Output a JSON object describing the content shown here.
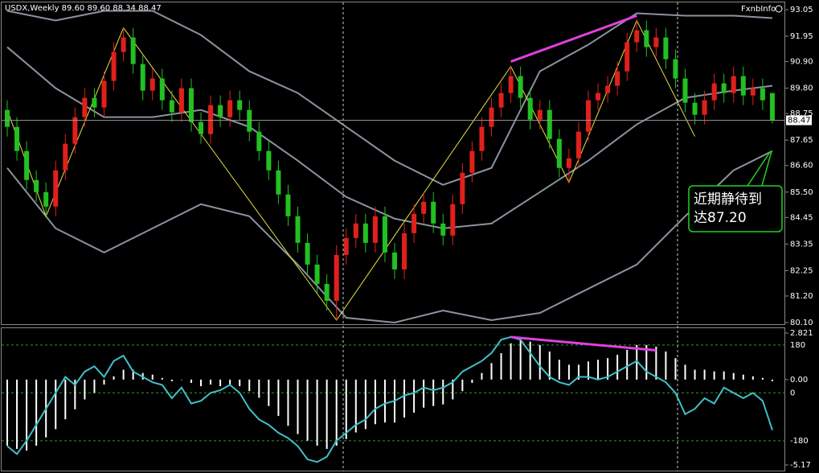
{
  "chart_data": {
    "type": "candlestick",
    "title": "USDX,Weekly  89.60 89.60 88.34 88.47",
    "brand": "FxnbInfo",
    "open": [
      88.9,
      88.2,
      87.2,
      86.0,
      85.5,
      84.9,
      86.4,
      87.5,
      88.6,
      89.4,
      89.0,
      90.1,
      91.3,
      91.9,
      90.8,
      89.7,
      90.2,
      89.3,
      88.8,
      89.8,
      88.4,
      87.9,
      89.1,
      88.6,
      89.3,
      88.9,
      88.0,
      87.2,
      86.4,
      85.4,
      84.5,
      83.4,
      82.5,
      81.7,
      81.0,
      82.9,
      83.6,
      84.2,
      83.4,
      84.5,
      83.0,
      82.3,
      83.8,
      84.6,
      85.1,
      84.2,
      83.7,
      85.0,
      86.3,
      87.2,
      88.2,
      89.0,
      89.6,
      90.3,
      89.4,
      88.5,
      88.9,
      87.7,
      86.5,
      86.9,
      88.0,
      89.3,
      89.6,
      89.9,
      90.5,
      91.7,
      92.2,
      91.5,
      91.9,
      91.0,
      90.2,
      89.2,
      88.7,
      89.3,
      90.0,
      89.6,
      90.3,
      89.5,
      89.8,
      89.6
    ],
    "high": [
      89.3,
      88.6,
      87.6,
      86.4,
      85.9,
      86.8,
      87.9,
      89.0,
      89.8,
      89.8,
      90.5,
      91.7,
      92.3,
      92.3,
      91.2,
      90.6,
      90.6,
      89.7,
      90.2,
      90.2,
      88.8,
      89.5,
      89.5,
      89.7,
      89.7,
      89.3,
      88.4,
      87.6,
      86.8,
      85.8,
      84.9,
      83.8,
      82.9,
      82.1,
      83.3,
      84.0,
      84.6,
      84.6,
      84.9,
      84.9,
      83.4,
      84.2,
      85.0,
      85.5,
      85.5,
      84.6,
      85.4,
      86.7,
      87.6,
      88.6,
      89.4,
      90.0,
      90.7,
      90.7,
      89.8,
      89.3,
      89.3,
      88.1,
      87.3,
      88.4,
      89.7,
      90.0,
      90.3,
      90.9,
      92.1,
      92.6,
      92.6,
      92.3,
      92.3,
      91.4,
      90.6,
      89.6,
      89.7,
      90.4,
      90.4,
      90.7,
      90.7,
      90.2,
      90.2,
      89.6
    ],
    "low": [
      87.8,
      86.8,
      85.6,
      85.1,
      84.5,
      84.5,
      86.0,
      87.1,
      88.2,
      88.6,
      88.6,
      89.7,
      90.9,
      90.4,
      89.3,
      89.3,
      88.9,
      88.4,
      88.4,
      88.0,
      87.5,
      87.5,
      88.2,
      88.2,
      88.5,
      87.6,
      86.8,
      86.0,
      85.0,
      84.1,
      83.0,
      82.1,
      81.3,
      80.6,
      80.2,
      82.5,
      83.2,
      83.0,
      83.0,
      82.6,
      81.9,
      81.9,
      83.4,
      84.2,
      83.8,
      83.3,
      83.3,
      84.6,
      85.9,
      86.8,
      87.8,
      88.6,
      89.2,
      89.0,
      88.1,
      88.1,
      87.3,
      86.1,
      85.9,
      86.5,
      87.6,
      88.9,
      89.2,
      89.5,
      90.1,
      91.3,
      91.1,
      91.1,
      90.6,
      89.8,
      88.8,
      88.3,
      88.3,
      88.9,
      89.2,
      89.2,
      89.1,
      89.1,
      88.9,
      88.34
    ],
    "close": [
      88.2,
      87.2,
      86.0,
      85.5,
      84.9,
      86.4,
      87.5,
      88.6,
      89.4,
      89.0,
      90.1,
      91.3,
      91.9,
      90.8,
      89.7,
      90.2,
      89.3,
      88.8,
      89.8,
      88.4,
      87.9,
      89.1,
      88.6,
      89.3,
      88.9,
      88.0,
      87.2,
      86.4,
      85.4,
      84.5,
      83.4,
      82.5,
      81.7,
      81.0,
      82.9,
      83.6,
      84.2,
      83.4,
      84.5,
      83.0,
      82.3,
      83.8,
      84.6,
      85.1,
      84.2,
      83.7,
      85.0,
      86.3,
      87.2,
      88.2,
      89.0,
      89.6,
      90.3,
      89.4,
      88.5,
      88.9,
      87.7,
      86.5,
      86.9,
      88.0,
      89.3,
      89.6,
      89.9,
      90.5,
      91.7,
      92.2,
      91.5,
      91.9,
      91.0,
      90.2,
      89.2,
      88.7,
      89.3,
      90.0,
      89.6,
      90.3,
      89.5,
      89.8,
      89.3,
      88.47
    ],
    "up_color": "#e0201c",
    "down_color": "#22c022",
    "ylim": [
      80.1,
      93.05
    ],
    "yticks": [
      93.05,
      91.95,
      {
        "value": 90.9,
        "label": "90.90"
      },
      {
        "value": 89.8,
        "label": "89.80"
      },
      88.75,
      87.65,
      {
        "value": 86.6,
        "label": "86.60"
      },
      {
        "value": 85.5,
        "label": "85.50"
      },
      84.45,
      83.35,
      82.25,
      {
        "value": 81.2,
        "label": "81.20"
      },
      {
        "value": 80.1,
        "label": "80.10"
      }
    ],
    "last_price": 88.47,
    "bands": {
      "x": [
        0,
        5,
        10,
        15,
        20,
        25,
        30,
        35,
        40,
        45,
        50,
        55,
        60,
        65,
        70,
        75,
        79
      ],
      "upper": [
        93.0,
        92.6,
        93.0,
        93.0,
        92.0,
        90.5,
        89.6,
        88.2,
        86.8,
        85.8,
        86.5,
        90.5,
        91.6,
        92.9,
        92.8,
        92.8,
        92.7
      ],
      "middle": [
        91.5,
        89.8,
        88.6,
        88.6,
        88.9,
        88.2,
        86.8,
        85.3,
        84.4,
        84.0,
        84.2,
        85.5,
        86.8,
        88.3,
        89.4,
        89.7,
        89.9
      ],
      "lower": [
        86.5,
        84.0,
        83.0,
        84.0,
        85.0,
        84.5,
        82.5,
        80.3,
        80.1,
        80.6,
        80.2,
        80.5,
        81.5,
        82.5,
        84.5,
        86.4,
        87.2
      ],
      "color": "#8a93a0"
    },
    "zigzag": {
      "x": [
        0,
        4,
        12,
        34,
        52,
        58,
        65,
        71
      ],
      "y": [
        88.9,
        84.5,
        92.3,
        80.2,
        90.7,
        85.9,
        92.6,
        87.8
      ],
      "color": "#e8e040"
    },
    "trendline": {
      "x": [
        52,
        65
      ],
      "y": [
        90.9,
        92.8
      ],
      "color": "#e040e0"
    },
    "annotation": {
      "lines": [
        "近期静待到",
        "达87.20"
      ],
      "color": "#e040e0"
    },
    "macd": {
      "values": [
        -4.0,
        -4.2,
        -4.3,
        -4.0,
        -3.5,
        -3.0,
        -2.4,
        -1.8,
        -1.2,
        -0.8,
        -0.3,
        0.2,
        0.6,
        0.6,
        0.4,
        0.3,
        0.1,
        -0.1,
        0.0,
        -0.2,
        -0.4,
        -0.3,
        -0.4,
        -0.3,
        -0.4,
        -0.7,
        -1.1,
        -1.6,
        -2.2,
        -2.8,
        -3.3,
        -3.7,
        -4.0,
        -4.2,
        -4.0,
        -3.6,
        -3.2,
        -3.0,
        -2.7,
        -2.6,
        -2.6,
        -2.3,
        -2.0,
        -1.7,
        -1.6,
        -1.5,
        -1.2,
        -0.7,
        -0.2,
        0.4,
        1.0,
        1.6,
        2.2,
        2.4,
        2.3,
        2.1,
        1.7,
        1.2,
        0.9,
        0.9,
        1.1,
        1.2,
        1.3,
        1.5,
        1.8,
        2.1,
        2.1,
        2.0,
        1.7,
        1.3,
        0.9,
        0.6,
        0.6,
        0.5,
        0.5,
        0.4,
        0.3,
        0.2,
        0.1,
        -0.1
      ],
      "color": "#ffffff",
      "ylim": [
        -5.17,
        2.821
      ],
      "yticks": [
        2.821,
        {
          "value": 0,
          "label": "0.00"
        },
        -5.17
      ]
    },
    "cci": {
      "values": [
        -200,
        -230,
        -180,
        -120,
        -60,
        0,
        60,
        30,
        80,
        100,
        60,
        120,
        140,
        80,
        60,
        40,
        30,
        -20,
        20,
        -40,
        -30,
        0,
        10,
        30,
        0,
        -60,
        -100,
        -120,
        -150,
        -170,
        -200,
        -250,
        -260,
        -240,
        -180,
        -150,
        -120,
        -100,
        -60,
        -40,
        -30,
        -10,
        0,
        20,
        10,
        20,
        40,
        80,
        100,
        120,
        150,
        200,
        210,
        200,
        150,
        100,
        60,
        40,
        30,
        60,
        60,
        50,
        60,
        80,
        100,
        120,
        80,
        60,
        40,
        0,
        -80,
        -60,
        -20,
        -40,
        20,
        0,
        -20,
        0,
        -30,
        -140
      ],
      "color": "#40c0c8",
      "ylim": [
        -271,
        225
      ],
      "yticks": [
        180,
        0,
        -180
      ],
      "trendline": {
        "x": [
          52,
          67
        ],
        "y": [
          210,
          160
        ],
        "color": "#e040e0"
      }
    }
  }
}
